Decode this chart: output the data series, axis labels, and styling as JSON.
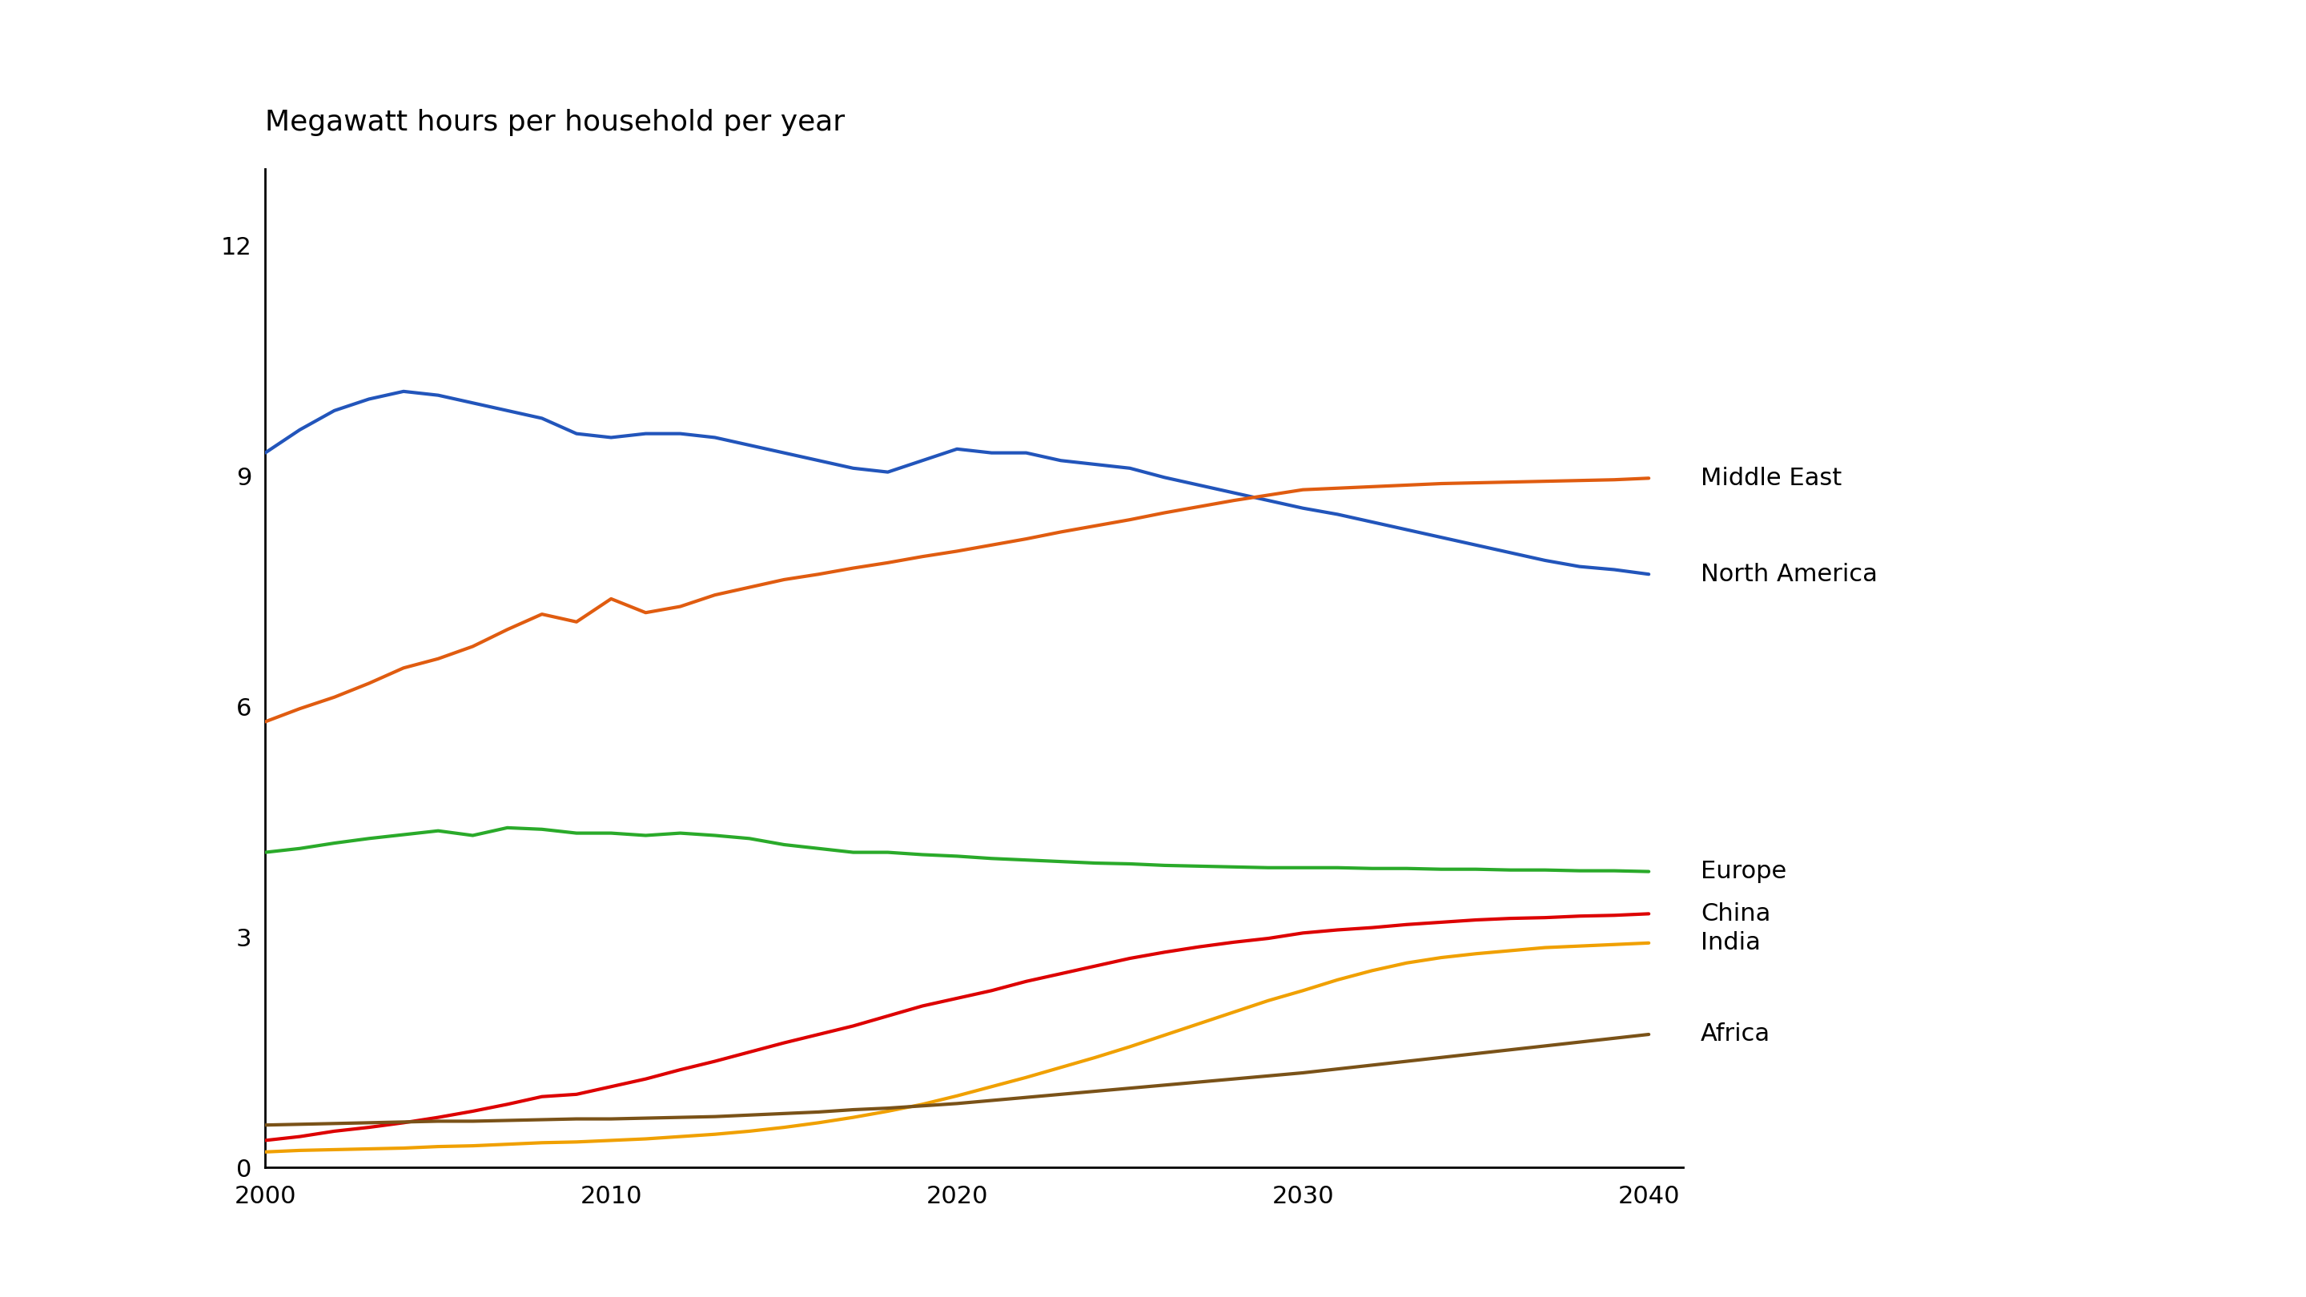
{
  "title": "Megawatt hours per household per year",
  "background_color": "#ffffff",
  "ylim": [
    0,
    13
  ],
  "yticks": [
    0,
    3,
    6,
    9,
    12
  ],
  "xlim": [
    2000,
    2041
  ],
  "xticks": [
    2000,
    2010,
    2020,
    2030,
    2040
  ],
  "series": {
    "North America": {
      "color": "#2255bb",
      "years": [
        2000,
        2001,
        2002,
        2003,
        2004,
        2005,
        2006,
        2007,
        2008,
        2009,
        2010,
        2011,
        2012,
        2013,
        2014,
        2015,
        2016,
        2017,
        2018,
        2019,
        2020,
        2021,
        2022,
        2023,
        2024,
        2025,
        2026,
        2027,
        2028,
        2029,
        2030,
        2031,
        2032,
        2033,
        2034,
        2035,
        2036,
        2037,
        2038,
        2039,
        2040
      ],
      "values": [
        9.3,
        9.6,
        9.85,
        10.0,
        10.1,
        10.05,
        9.95,
        9.85,
        9.75,
        9.55,
        9.5,
        9.55,
        9.55,
        9.5,
        9.4,
        9.3,
        9.2,
        9.1,
        9.05,
        9.2,
        9.35,
        9.3,
        9.3,
        9.2,
        9.15,
        9.1,
        8.98,
        8.88,
        8.78,
        8.68,
        8.58,
        8.5,
        8.4,
        8.3,
        8.2,
        8.1,
        8.0,
        7.9,
        7.82,
        7.78,
        7.72
      ]
    },
    "Middle East": {
      "color": "#e05c10",
      "years": [
        2000,
        2001,
        2002,
        2003,
        2004,
        2005,
        2006,
        2007,
        2008,
        2009,
        2010,
        2011,
        2012,
        2013,
        2014,
        2015,
        2016,
        2017,
        2018,
        2019,
        2020,
        2021,
        2022,
        2023,
        2024,
        2025,
        2026,
        2027,
        2028,
        2029,
        2030,
        2031,
        2032,
        2033,
        2034,
        2035,
        2036,
        2037,
        2038,
        2039,
        2040
      ],
      "values": [
        5.8,
        5.97,
        6.12,
        6.3,
        6.5,
        6.62,
        6.78,
        7.0,
        7.2,
        7.1,
        7.4,
        7.22,
        7.3,
        7.45,
        7.55,
        7.65,
        7.72,
        7.8,
        7.87,
        7.95,
        8.02,
        8.1,
        8.18,
        8.27,
        8.35,
        8.43,
        8.52,
        8.6,
        8.68,
        8.75,
        8.82,
        8.84,
        8.86,
        8.88,
        8.9,
        8.91,
        8.92,
        8.93,
        8.94,
        8.95,
        8.97
      ]
    },
    "Europe": {
      "color": "#2aaa2a",
      "years": [
        2000,
        2001,
        2002,
        2003,
        2004,
        2005,
        2006,
        2007,
        2008,
        2009,
        2010,
        2011,
        2012,
        2013,
        2014,
        2015,
        2016,
        2017,
        2018,
        2019,
        2020,
        2021,
        2022,
        2023,
        2024,
        2025,
        2026,
        2027,
        2028,
        2029,
        2030,
        2031,
        2032,
        2033,
        2034,
        2035,
        2036,
        2037,
        2038,
        2039,
        2040
      ],
      "values": [
        4.1,
        4.15,
        4.22,
        4.28,
        4.33,
        4.38,
        4.32,
        4.42,
        4.4,
        4.35,
        4.35,
        4.32,
        4.35,
        4.32,
        4.28,
        4.2,
        4.15,
        4.1,
        4.1,
        4.07,
        4.05,
        4.02,
        4.0,
        3.98,
        3.96,
        3.95,
        3.93,
        3.92,
        3.91,
        3.9,
        3.9,
        3.9,
        3.89,
        3.89,
        3.88,
        3.88,
        3.87,
        3.87,
        3.86,
        3.86,
        3.85
      ]
    },
    "China": {
      "color": "#dd0000",
      "years": [
        2000,
        2001,
        2002,
        2003,
        2004,
        2005,
        2006,
        2007,
        2008,
        2009,
        2010,
        2011,
        2012,
        2013,
        2014,
        2015,
        2016,
        2017,
        2018,
        2019,
        2020,
        2021,
        2022,
        2023,
        2024,
        2025,
        2026,
        2027,
        2028,
        2029,
        2030,
        2031,
        2032,
        2033,
        2034,
        2035,
        2036,
        2037,
        2038,
        2039,
        2040
      ],
      "values": [
        0.35,
        0.4,
        0.47,
        0.52,
        0.58,
        0.65,
        0.73,
        0.82,
        0.92,
        0.95,
        1.05,
        1.15,
        1.27,
        1.38,
        1.5,
        1.62,
        1.73,
        1.84,
        1.97,
        2.1,
        2.2,
        2.3,
        2.42,
        2.52,
        2.62,
        2.72,
        2.8,
        2.87,
        2.93,
        2.98,
        3.05,
        3.09,
        3.12,
        3.16,
        3.19,
        3.22,
        3.24,
        3.25,
        3.27,
        3.28,
        3.3
      ]
    },
    "India": {
      "color": "#f0a000",
      "years": [
        2000,
        2001,
        2002,
        2003,
        2004,
        2005,
        2006,
        2007,
        2008,
        2009,
        2010,
        2011,
        2012,
        2013,
        2014,
        2015,
        2016,
        2017,
        2018,
        2019,
        2020,
        2021,
        2022,
        2023,
        2024,
        2025,
        2026,
        2027,
        2028,
        2029,
        2030,
        2031,
        2032,
        2033,
        2034,
        2035,
        2036,
        2037,
        2038,
        2039,
        2040
      ],
      "values": [
        0.2,
        0.22,
        0.23,
        0.24,
        0.25,
        0.27,
        0.28,
        0.3,
        0.32,
        0.33,
        0.35,
        0.37,
        0.4,
        0.43,
        0.47,
        0.52,
        0.58,
        0.65,
        0.73,
        0.82,
        0.93,
        1.05,
        1.17,
        1.3,
        1.43,
        1.57,
        1.72,
        1.87,
        2.02,
        2.17,
        2.3,
        2.44,
        2.56,
        2.66,
        2.73,
        2.78,
        2.82,
        2.86,
        2.88,
        2.9,
        2.92
      ]
    },
    "Africa": {
      "color": "#7a5218",
      "years": [
        2000,
        2001,
        2002,
        2003,
        2004,
        2005,
        2006,
        2007,
        2008,
        2009,
        2010,
        2011,
        2012,
        2013,
        2014,
        2015,
        2016,
        2017,
        2018,
        2019,
        2020,
        2021,
        2022,
        2023,
        2024,
        2025,
        2026,
        2027,
        2028,
        2029,
        2030,
        2031,
        2032,
        2033,
        2034,
        2035,
        2036,
        2037,
        2038,
        2039,
        2040
      ],
      "values": [
        0.55,
        0.56,
        0.57,
        0.58,
        0.59,
        0.6,
        0.6,
        0.61,
        0.62,
        0.63,
        0.63,
        0.64,
        0.65,
        0.66,
        0.68,
        0.7,
        0.72,
        0.75,
        0.77,
        0.8,
        0.83,
        0.87,
        0.91,
        0.95,
        0.99,
        1.03,
        1.07,
        1.11,
        1.15,
        1.19,
        1.23,
        1.28,
        1.33,
        1.38,
        1.43,
        1.48,
        1.53,
        1.58,
        1.63,
        1.68,
        1.73
      ]
    }
  },
  "label_positions": {
    "Middle East": {
      "y": 8.97
    },
    "North America": {
      "y": 7.72
    },
    "Europe": {
      "y": 3.85
    },
    "China": {
      "y": 3.3
    },
    "India": {
      "y": 2.92
    },
    "Africa": {
      "y": 1.73
    }
  },
  "font_size_title": 26,
  "font_size_labels": 22,
  "font_size_ticks": 22,
  "line_width": 3.0
}
